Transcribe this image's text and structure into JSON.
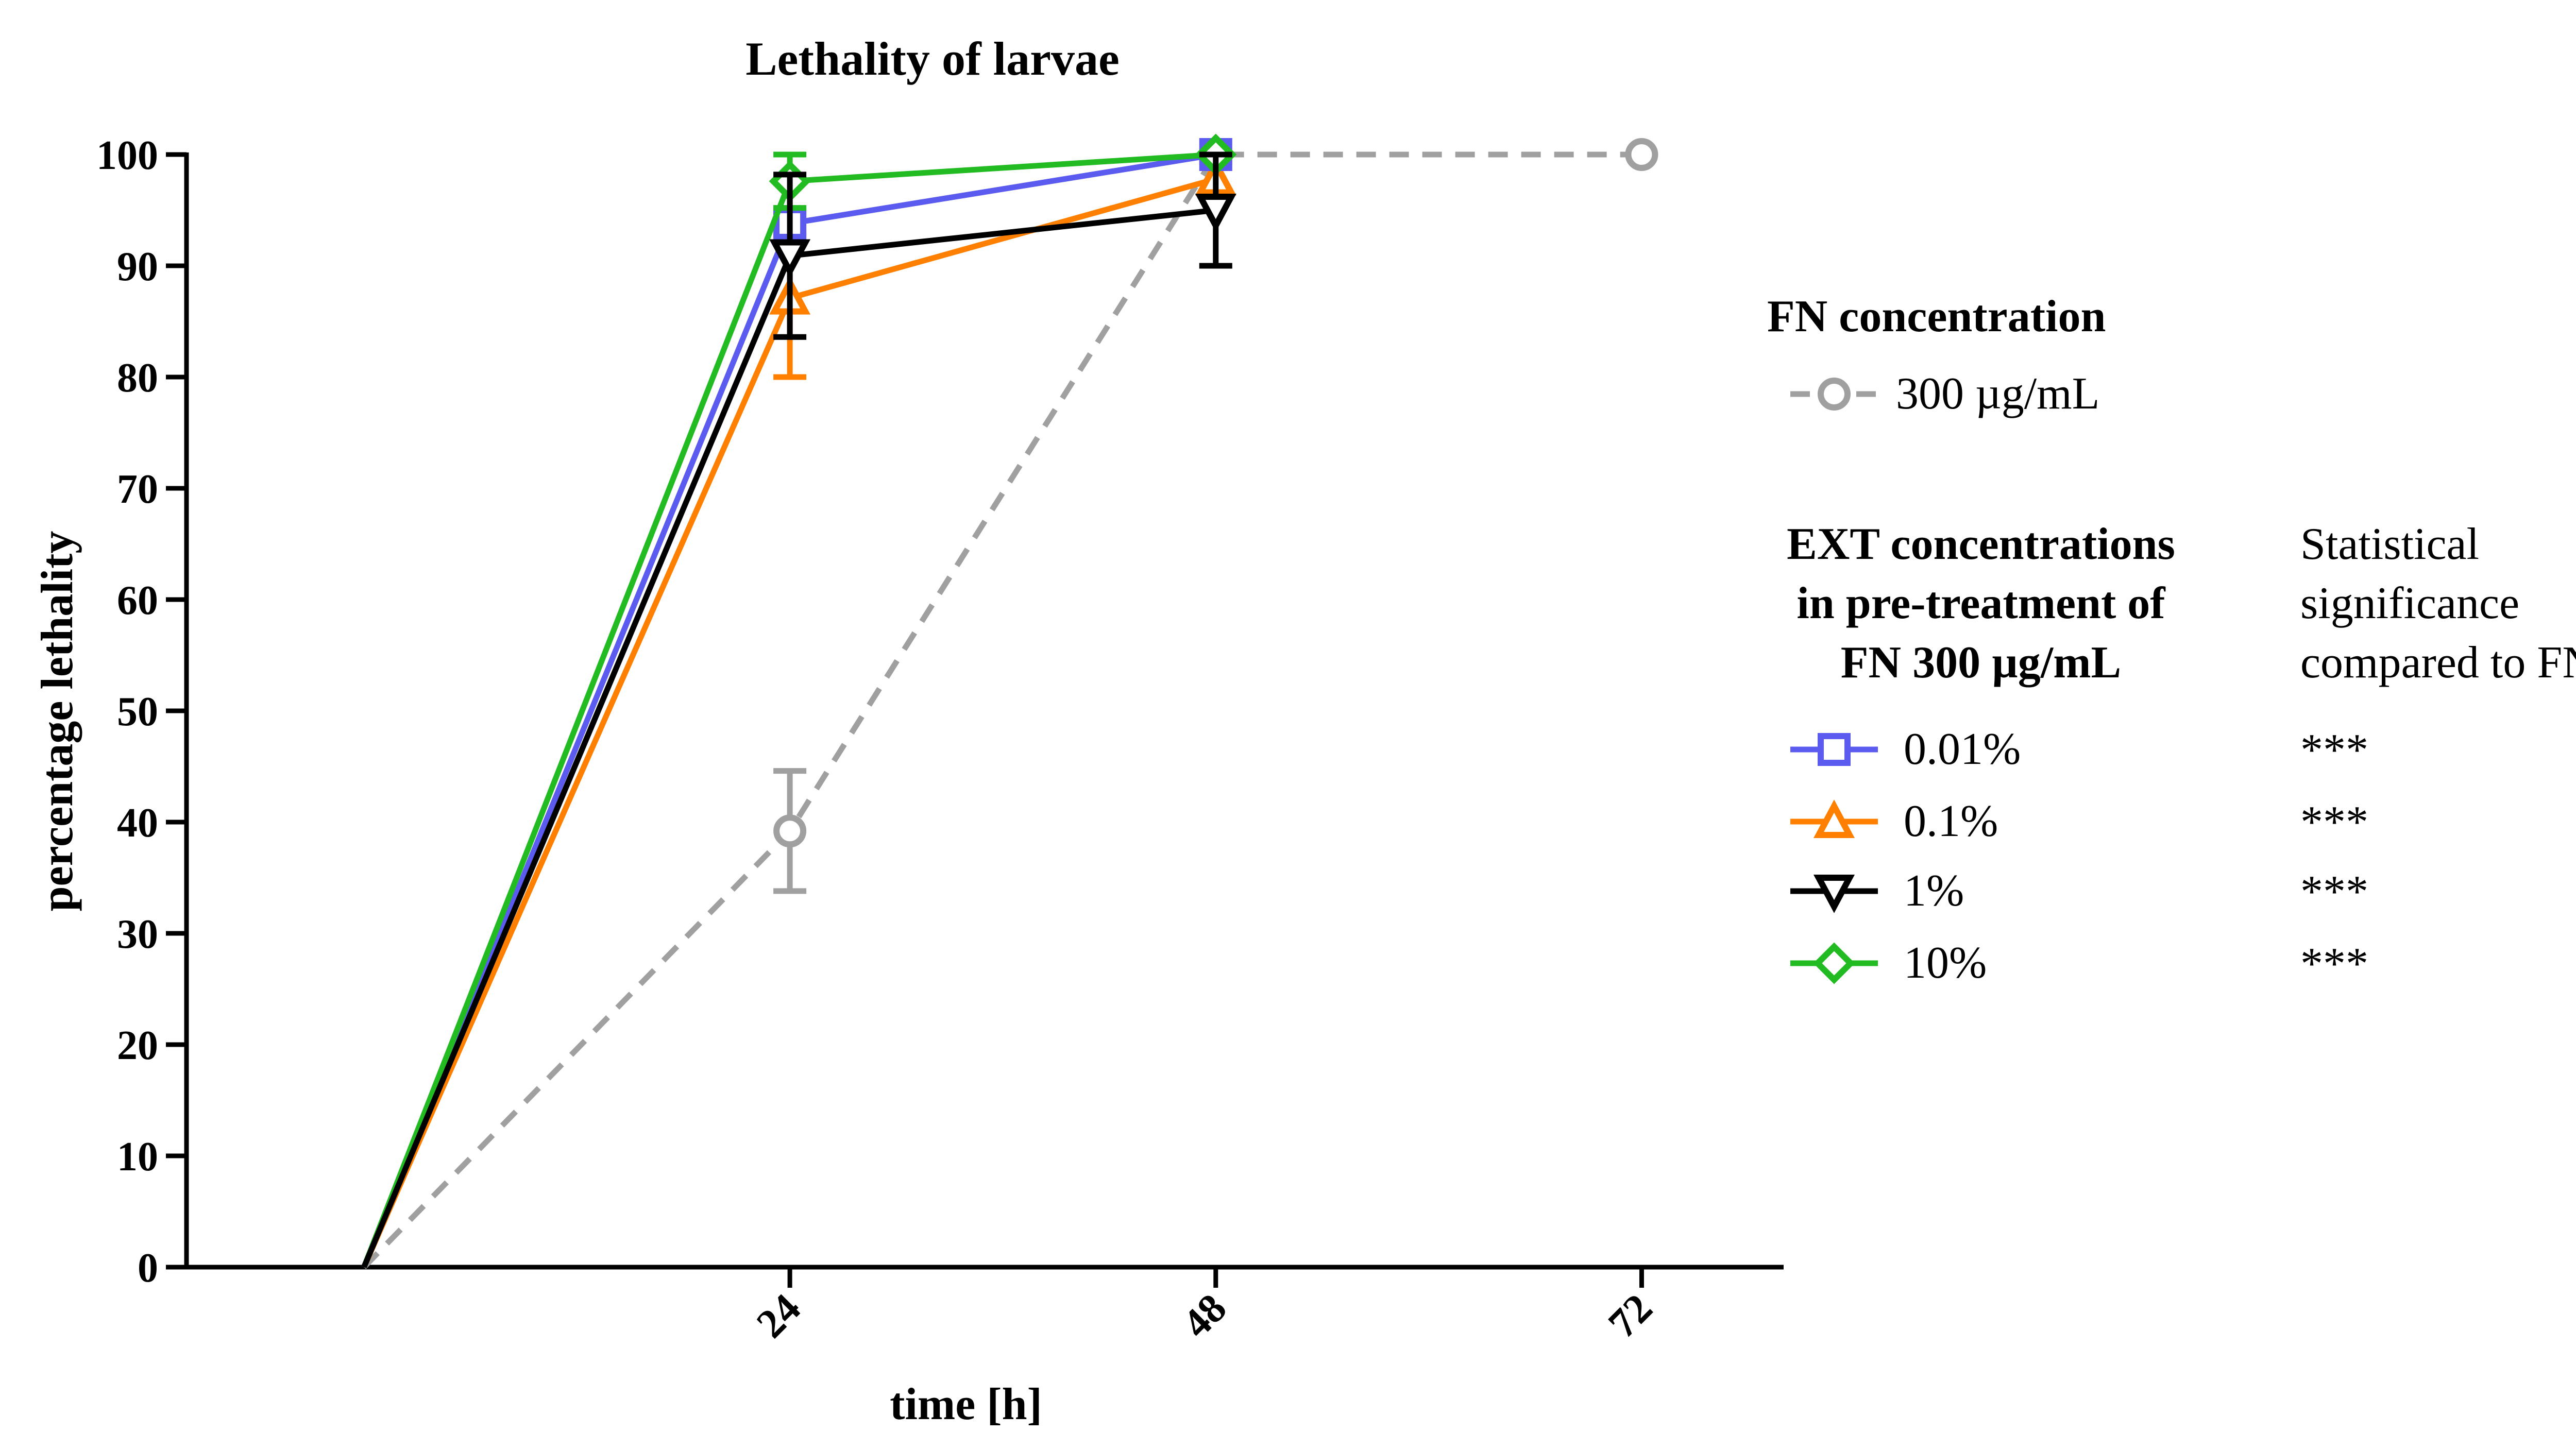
{
  "chart_data": {
    "type": "line",
    "title": "Lethality of larvae",
    "xlabel": "time [h]",
    "ylabel": "percentage lethality",
    "xlim": [
      -10,
      80
    ],
    "ylim": [
      0,
      100
    ],
    "x_ticks": [
      24,
      48,
      72
    ],
    "x_tick_labels": [
      "24",
      "48",
      "72"
    ],
    "y_ticks": [
      0,
      10,
      20,
      30,
      40,
      50,
      60,
      70,
      80,
      90,
      100
    ],
    "y_tick_labels": [
      "0",
      "10",
      "20",
      "30",
      "40",
      "50",
      "60",
      "70",
      "80",
      "90",
      "100"
    ],
    "grid": false,
    "legend_placement": "right",
    "fn_group": {
      "heading": "FN concentration",
      "series": [
        {
          "name": "300 µg/mL",
          "color": "#a0a0a0",
          "marker": "circle",
          "dashed": true,
          "points": [
            {
              "x": 0,
              "y": 0,
              "err": 0
            },
            {
              "x": 24,
              "y": 39.2,
              "err": 5.4
            },
            {
              "x": 48,
              "y": 100,
              "err": 0
            },
            {
              "x": 72,
              "y": 100,
              "err": 0
            }
          ]
        }
      ]
    },
    "ext_group": {
      "heading_lines": [
        "EXT concentrations",
        "in pre-treatment of",
        "FN 300 µg/mL"
      ],
      "significance_heading_lines": [
        "Statistical",
        "significance",
        "compared to FN"
      ],
      "series": [
        {
          "name": "0.01%",
          "significance": "***",
          "color": "#5b5bf0",
          "marker": "square",
          "dashed": false,
          "points": [
            {
              "x": 0,
              "y": 0,
              "err": 0
            },
            {
              "x": 24,
              "y": 93.8,
              "err": 1.0
            },
            {
              "x": 48,
              "y": 100,
              "err": 0
            }
          ]
        },
        {
          "name": "0.1%",
          "significance": "***",
          "color": "#ff8000",
          "marker": "triangle-up",
          "dashed": false,
          "points": [
            {
              "x": 0,
              "y": 0,
              "err": 0
            },
            {
              "x": 24,
              "y": 87.1,
              "err": 7.1
            },
            {
              "x": 48,
              "y": 97.8,
              "err": 1.5
            }
          ]
        },
        {
          "name": "1%",
          "significance": "***",
          "color": "#000000",
          "marker": "triangle-down",
          "dashed": false,
          "points": [
            {
              "x": 0,
              "y": 0,
              "err": 0
            },
            {
              "x": 24,
              "y": 90.9,
              "err": 7.3
            },
            {
              "x": 48,
              "y": 95.0,
              "err": 5.0
            }
          ]
        },
        {
          "name": "10%",
          "significance": "***",
          "color": "#22bb22",
          "marker": "diamond",
          "dashed": false,
          "points": [
            {
              "x": 0,
              "y": 0,
              "err": 0
            },
            {
              "x": 24,
              "y": 97.6,
              "err": 2.4
            },
            {
              "x": 48,
              "y": 100,
              "err": 0
            }
          ]
        }
      ]
    }
  }
}
